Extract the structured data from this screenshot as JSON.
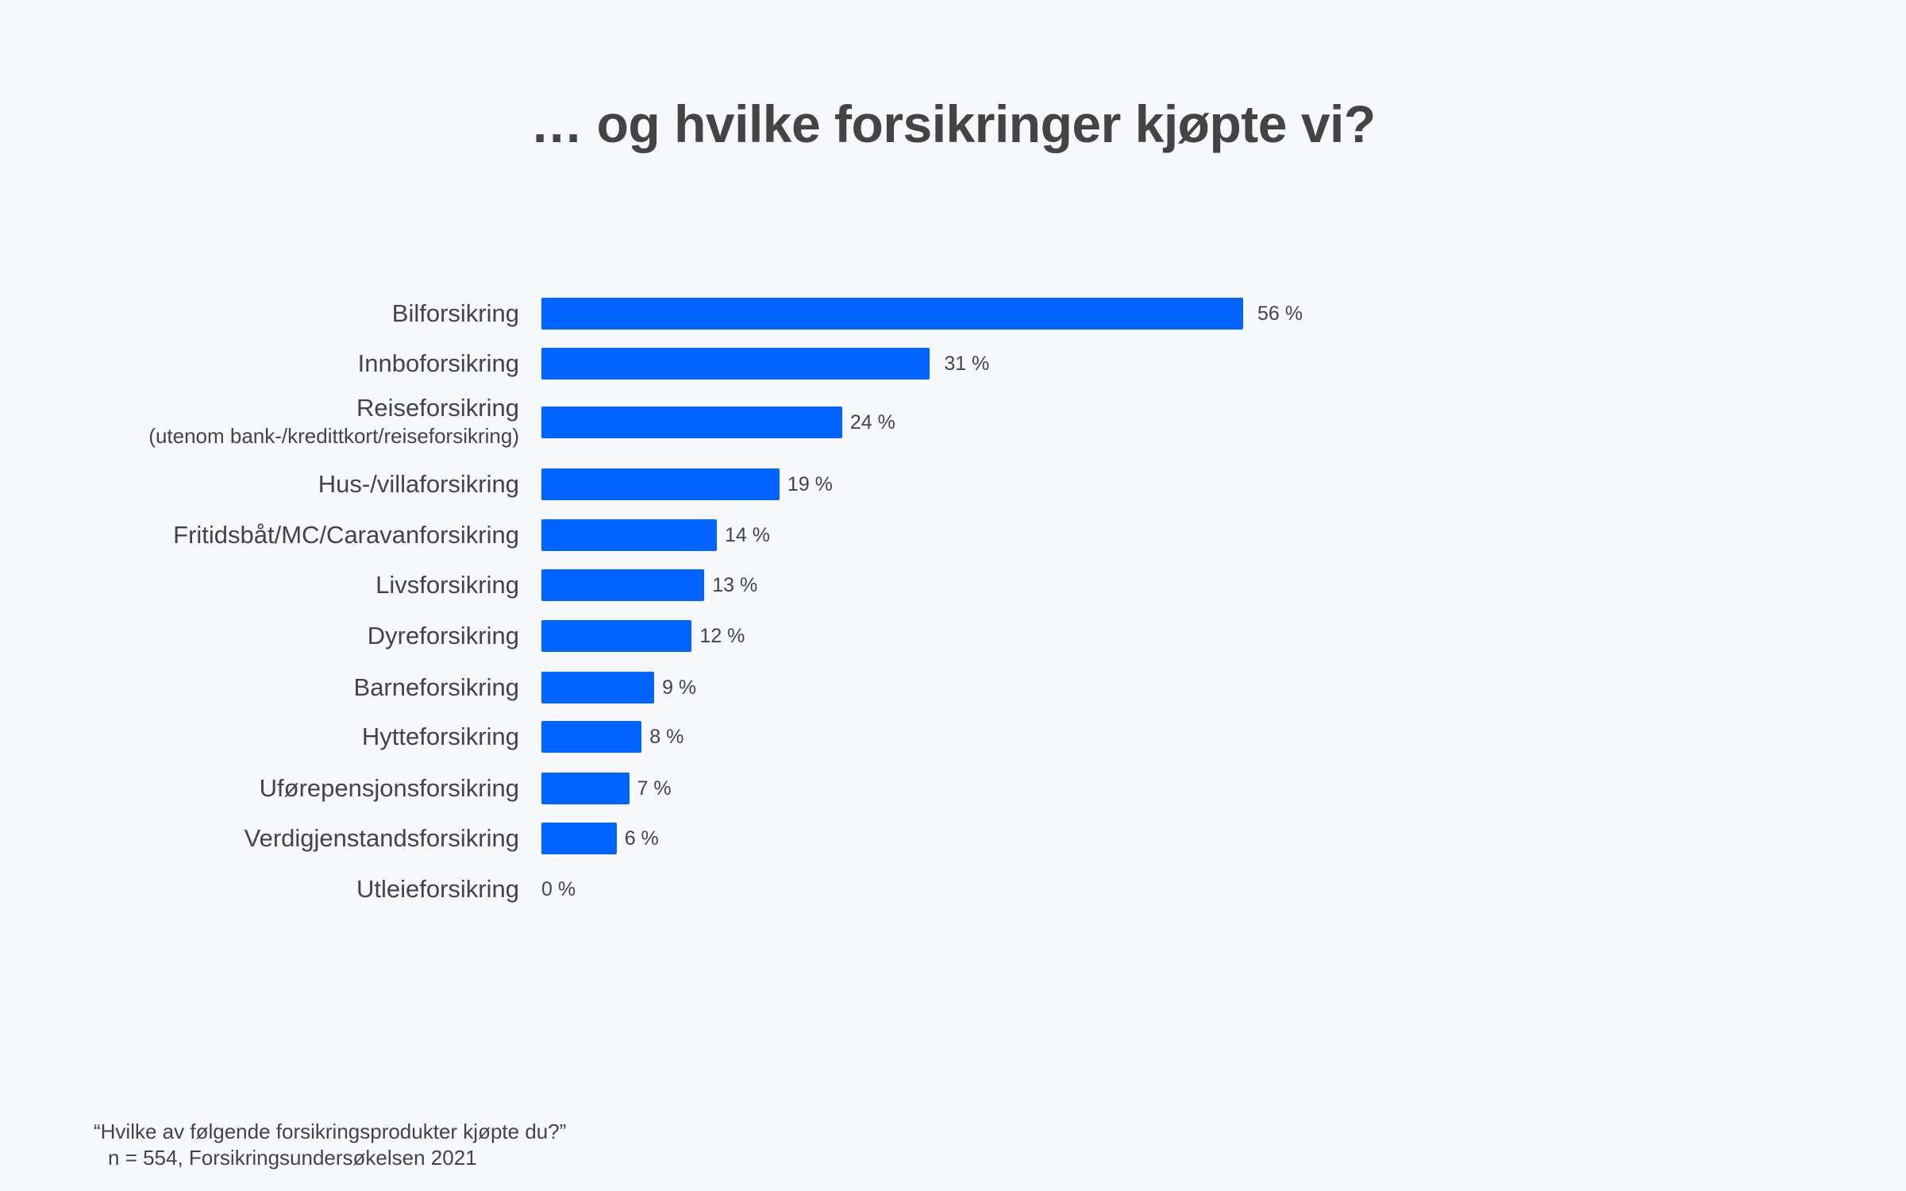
{
  "chart_data": {
    "type": "bar",
    "orientation": "horizontal",
    "title": "… og hvilke forsikringer kjøpte vi?",
    "categories": [
      "Bilforsikring",
      "Innboforsikring",
      "Reiseforsikring",
      "Hus-/villaforsikring",
      "Fritidsbåt/MC/Caravanforsikring",
      "Livsforsikring",
      "Dyreforsikring",
      "Barneforsikring",
      "Hytteforsikring",
      "Uførepensjonsforsikring",
      "Verdigjenstandsforsikring",
      "Utleieforsikring"
    ],
    "category_sublabels": {
      "2": "(utenom bank-/kredittkort/reiseforsikring)"
    },
    "values": [
      56,
      31,
      24,
      19,
      14,
      13,
      12,
      9,
      8,
      7,
      6,
      0
    ],
    "value_labels": [
      "56 %",
      "31 %",
      "24 %",
      "19 %",
      "14 %",
      "13 %",
      "12 %",
      "9 %",
      "8 %",
      "7 %",
      "6 %",
      "0 %"
    ],
    "unit": "%",
    "xlim": [
      0,
      56
    ],
    "grid": false,
    "bar_color": "#0064fe"
  },
  "footnote": {
    "question": "“Hvilke av følgende forsikringsprodukter kjøpte du?”",
    "source": "n = 554, Forsikringsundersøkelsen 2021"
  }
}
